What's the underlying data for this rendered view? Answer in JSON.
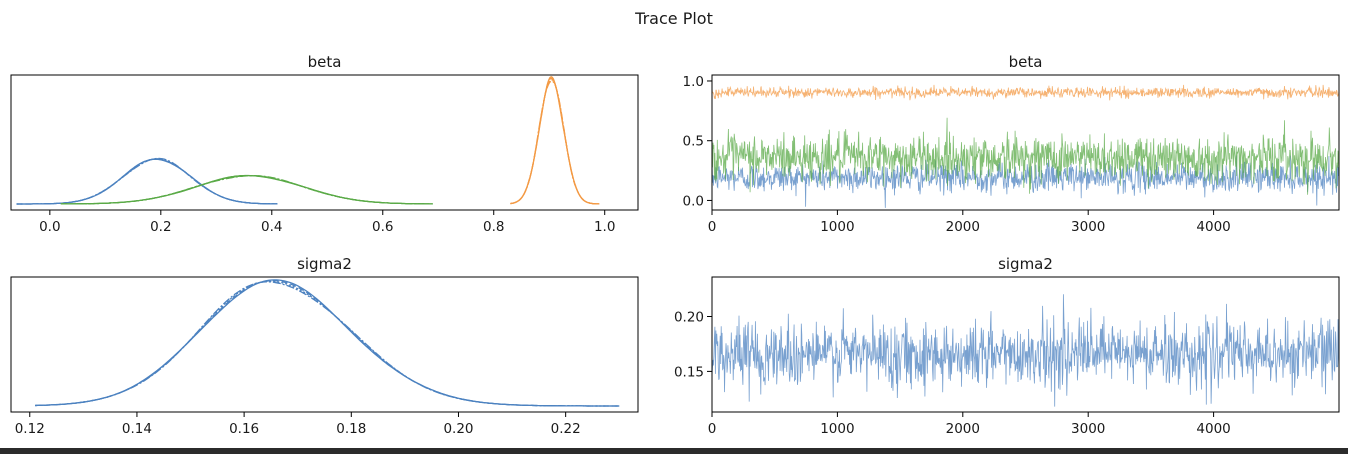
{
  "figure": {
    "title": "Trace Plot"
  },
  "colors": {
    "chain_blue": "#4c82c0",
    "chain_orange": "#f39a45",
    "chain_green": "#5aaa47",
    "axis": "#000000"
  },
  "chart_data": [
    {
      "type": "line",
      "panel": "kde",
      "title": "beta",
      "xlabel": "",
      "ylabel": "",
      "xlim": [
        -0.07,
        1.06
      ],
      "xticks": [
        0.0,
        0.2,
        0.4,
        0.6,
        0.8,
        1.0
      ],
      "xticklabels": [
        "0.0",
        "0.2",
        "0.4",
        "0.6",
        "0.8",
        "1.0"
      ],
      "yticks": [],
      "series": [
        {
          "color": "#4c82c0",
          "mean": 0.193,
          "sd": 0.061,
          "range": [
            -0.06,
            0.41
          ]
        },
        {
          "color": "#5aaa47",
          "mean": 0.36,
          "sd": 0.097,
          "range": [
            0.02,
            0.69
          ]
        },
        {
          "color": "#f39a45",
          "mean": 0.904,
          "sd": 0.022,
          "range": [
            0.83,
            0.99
          ]
        }
      ]
    },
    {
      "type": "line",
      "panel": "trace",
      "title": "beta",
      "xlabel": "",
      "ylabel": "",
      "xlim": [
        0,
        5000
      ],
      "ylim": [
        -0.08,
        1.05
      ],
      "xticks": [
        0,
        1000,
        2000,
        3000,
        4000
      ],
      "xticklabels": [
        "0",
        "1000",
        "2000",
        "3000",
        "4000"
      ],
      "yticks": [
        0.0,
        0.5,
        1.0
      ],
      "yticklabels": [
        "0.0",
        "0.5",
        "1.0"
      ],
      "series": [
        {
          "color": "#4c82c0",
          "center": 0.193,
          "spread": 0.061
        },
        {
          "color": "#5aaa47",
          "center": 0.36,
          "spread": 0.097
        },
        {
          "color": "#f39a45",
          "center": 0.904,
          "spread": 0.022
        }
      ]
    },
    {
      "type": "line",
      "panel": "kde",
      "title": "sigma2",
      "xlabel": "",
      "ylabel": "",
      "xlim": [
        0.1165,
        0.2335
      ],
      "xticks": [
        0.12,
        0.14,
        0.16,
        0.18,
        0.2,
        0.22
      ],
      "xticklabels": [
        "0.12",
        "0.14",
        "0.16",
        "0.18",
        "0.20",
        "0.22"
      ],
      "yticks": [],
      "series": [
        {
          "color": "#4c82c0",
          "mode": 0.165,
          "sd_left": 0.0133,
          "sd_right": 0.0148,
          "range": [
            0.121,
            0.23
          ]
        }
      ]
    },
    {
      "type": "line",
      "panel": "trace",
      "title": "sigma2",
      "xlabel": "",
      "ylabel": "",
      "xlim": [
        0,
        5000
      ],
      "ylim": [
        0.113,
        0.236
      ],
      "xticks": [
        0,
        1000,
        2000,
        3000,
        4000
      ],
      "xticklabels": [
        "0",
        "1000",
        "2000",
        "3000",
        "4000"
      ],
      "yticks": [
        0.15,
        0.2
      ],
      "yticklabels": [
        "0.15",
        "0.20"
      ],
      "series": [
        {
          "color": "#4c82c0",
          "center": 0.166,
          "spread": 0.015
        }
      ]
    }
  ]
}
